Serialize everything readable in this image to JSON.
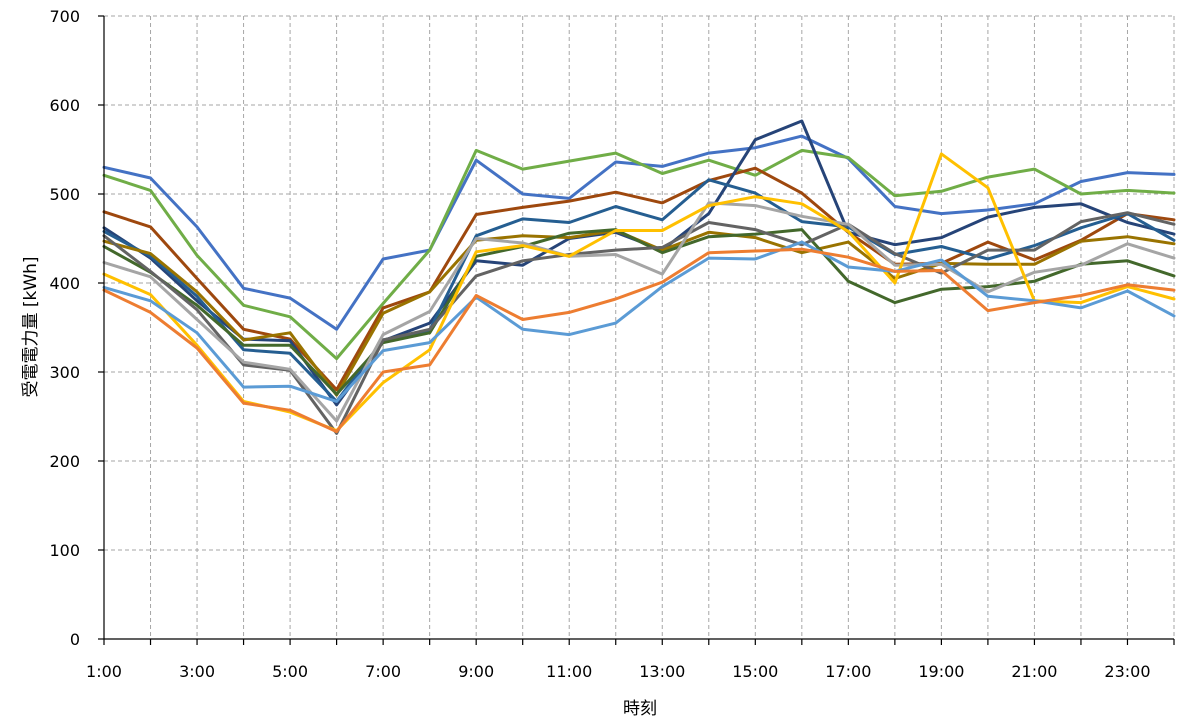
{
  "chart_data": {
    "type": "line",
    "title": "",
    "xlabel": "時刻",
    "ylabel": "受電電力量 [kWh]",
    "ylim": [
      0,
      700
    ],
    "y_ticks": [
      0,
      100,
      200,
      300,
      400,
      500,
      600,
      700
    ],
    "y_tick_labels": [
      "0",
      "100",
      "200",
      "300",
      "400",
      "500",
      "600",
      "700"
    ],
    "categories": [
      "1:00",
      "2:00",
      "3:00",
      "4:00",
      "5:00",
      "6:00",
      "7:00",
      "8:00",
      "9:00",
      "10:00",
      "11:00",
      "12:00",
      "13:00",
      "14:00",
      "15:00",
      "16:00",
      "17:00",
      "18:00",
      "19:00",
      "20:00",
      "21:00",
      "22:00",
      "23:00",
      "24:00"
    ],
    "x_tick_labels": [
      "1:00",
      "3:00",
      "5:00",
      "7:00",
      "9:00",
      "11:00",
      "13:00",
      "15:00",
      "17:00",
      "19:00",
      "21:00",
      "23:00"
    ],
    "grid": true,
    "legend": "none",
    "series": [
      {
        "color": "#4472c4",
        "values": [
          530,
          518,
          463,
          394,
          383,
          348,
          427,
          437,
          538,
          500,
          495,
          536,
          531,
          546,
          552,
          565,
          540,
          486,
          478,
          482,
          489,
          514,
          524,
          522
        ]
      },
      {
        "color": "#70ad47",
        "values": [
          521,
          504,
          431,
          375,
          362,
          315,
          377,
          437,
          549,
          528,
          537,
          546,
          523,
          538,
          521,
          549,
          541,
          498,
          503,
          519,
          528,
          500,
          504,
          501
        ]
      },
      {
        "color": "#9e480e",
        "values": [
          480,
          463,
          405,
          348,
          337,
          280,
          372,
          390,
          477,
          485,
          492,
          502,
          490,
          515,
          529,
          501,
          457,
          421,
          422,
          446,
          426,
          448,
          478,
          471
        ]
      },
      {
        "color": "#264478",
        "values": [
          462,
          428,
          380,
          337,
          335,
          263,
          335,
          355,
          425,
          420,
          450,
          457,
          437,
          478,
          561,
          582,
          457,
          443,
          451,
          474,
          485,
          489,
          468,
          455
        ]
      },
      {
        "color": "#255e91",
        "values": [
          458,
          430,
          385,
          325,
          321,
          267,
          336,
          347,
          453,
          472,
          468,
          486,
          471,
          516,
          501,
          469,
          463,
          432,
          441,
          427,
          442,
          462,
          478,
          448
        ]
      },
      {
        "color": "#997300",
        "values": [
          447,
          433,
          390,
          336,
          344,
          274,
          366,
          390,
          448,
          453,
          451,
          459,
          437,
          457,
          451,
          434,
          446,
          405,
          422,
          421,
          421,
          447,
          452,
          444
        ]
      },
      {
        "color": "#43682b",
        "values": [
          441,
          412,
          375,
          330,
          330,
          275,
          333,
          344,
          430,
          441,
          456,
          460,
          434,
          452,
          455,
          460,
          402,
          378,
          393,
          396,
          402,
          421,
          425,
          408
        ]
      },
      {
        "color": "#636363",
        "values": [
          453,
          413,
          370,
          308,
          302,
          231,
          336,
          348,
          408,
          425,
          432,
          437,
          440,
          468,
          460,
          443,
          466,
          433,
          411,
          437,
          437,
          469,
          479,
          466
        ]
      },
      {
        "color": "#a5a5a5",
        "values": [
          423,
          407,
          359,
          311,
          303,
          245,
          342,
          368,
          450,
          445,
          430,
          432,
          410,
          490,
          487,
          475,
          466,
          420,
          421,
          390,
          412,
          420,
          444,
          428
        ]
      },
      {
        "color": "#ffc000",
        "values": [
          410,
          387,
          330,
          267,
          255,
          234,
          288,
          325,
          435,
          442,
          430,
          459,
          459,
          487,
          497,
          489,
          458,
          400,
          545,
          507,
          380,
          378,
          396,
          382
        ]
      },
      {
        "color": "#5b9bd5",
        "values": [
          395,
          380,
          344,
          283,
          284,
          267,
          324,
          333,
          384,
          348,
          342,
          355,
          396,
          428,
          427,
          446,
          418,
          413,
          426,
          385,
          380,
          372,
          391,
          363
        ]
      },
      {
        "color": "#ed7d31",
        "values": [
          392,
          367,
          327,
          265,
          257,
          233,
          300,
          308,
          386,
          359,
          367,
          382,
          401,
          434,
          436,
          438,
          429,
          413,
          414,
          369,
          378,
          386,
          398,
          392
        ]
      }
    ]
  }
}
